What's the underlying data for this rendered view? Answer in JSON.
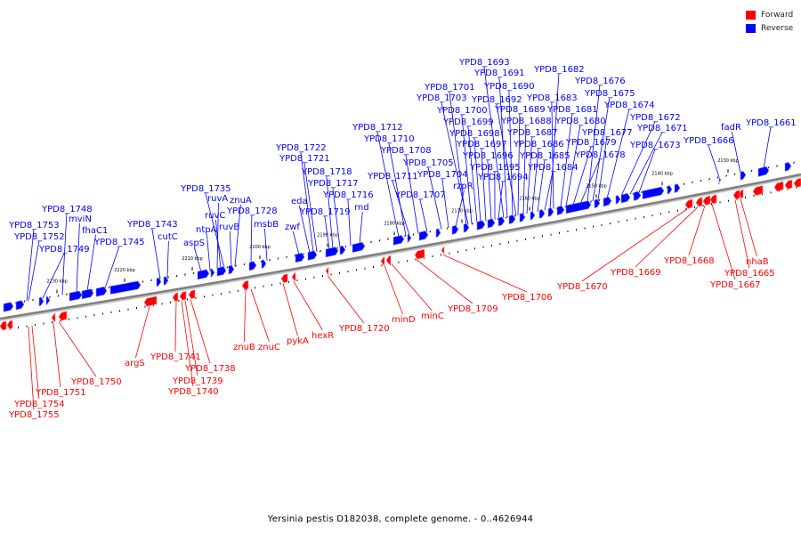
{
  "legend": [
    {
      "label": "Forward",
      "color": "#ff0000"
    },
    {
      "label": "Reverse",
      "color": "#0000ff"
    }
  ],
  "caption": "Yersinia pestis D182038, complete genome. - 0..4626944",
  "colors": {
    "forward": "#ff0000",
    "reverse": "#0000ff",
    "backbone": "#7f7f7f",
    "tick": "#000000"
  },
  "map": {
    "tick_labels": [
      "2230 kbp",
      "2220 kbp",
      "2210 kbp",
      "2200 kbp",
      "2190 kbp",
      "2180 kbp",
      "2170 kbp",
      "2160 kbp",
      "2150 kbp",
      "2140 kbp",
      "2130 kbp"
    ],
    "reverse_labels": [
      "YPD8_1753",
      "YPD8_1752",
      "YPD8_1749",
      "YPD8_1748",
      "mviN",
      "fhaC1",
      "YPD8_1745",
      "YPD8_1743",
      "cutC",
      "aspS",
      "ntpA",
      "ruvA",
      "ruvC",
      "YPD8_1735",
      "ruvB",
      "znuA",
      "YPD8_1728",
      "msbB",
      "zwf",
      "eda",
      "YPD8_1722",
      "YPD8_1721",
      "YPD8_1719",
      "YPD8_1718",
      "YPD8_1717",
      "YPD8_1716",
      "rnd",
      "YPD8_1712",
      "YPD8_1710",
      "YPD8_1711",
      "YPD8_1708",
      "YPD8_1707",
      "YPD8_1705",
      "YPD8_1704",
      "rzpR",
      "YPD8_1701",
      "YPD8_1703",
      "YPD8_1700",
      "YPD8_1699",
      "YPD8_1698",
      "YPD8_1697",
      "YPD8_1696",
      "YPD8_1695",
      "YPD8_1694",
      "YPD8_1693",
      "YPD8_1691",
      "YPD8_1690",
      "YPD8_1692",
      "YPD8_1689",
      "YPD8_1688",
      "YPD8_1687",
      "YPD8_1686",
      "YPD8_1685",
      "YPD8_1684",
      "YPD8_1682",
      "YPD8_1683",
      "YPD8_1681",
      "YPD8_1680",
      "YPD8_1679",
      "YPD8_1678",
      "YPD8_1676",
      "YPD8_1675",
      "YPD8_1677",
      "YPD8_1674",
      "YPD8_1672",
      "YPD8_1671",
      "YPD8_1673",
      "YPD8_1666",
      "fadR",
      "YPD8_1661"
    ],
    "forward_labels": [
      "YPD8_1755",
      "YPD8_1754",
      "YPD8_1751",
      "YPD8_1750",
      "argS",
      "YPD8_1741",
      "YPD8_1740",
      "YPD8_1739",
      "YPD8_1738",
      "znuB",
      "znuC",
      "pykA",
      "hexR",
      "YPD8_1720",
      "minD",
      "minC",
      "YPD8_1709",
      "YPD8_1706",
      "YPD8_1670",
      "YPD8_1669",
      "YPD8_1668",
      "YPD8_1667",
      "YPD8_1665",
      "nhaB"
    ]
  }
}
